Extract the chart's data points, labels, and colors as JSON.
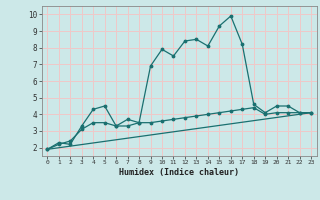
{
  "title": "",
  "xlabel": "Humidex (Indice chaleur)",
  "bg_color": "#cce8e8",
  "grid_color": "#f0c8c8",
  "line_color": "#1a7070",
  "xlim": [
    -0.5,
    23.5
  ],
  "ylim": [
    1.5,
    10.5
  ],
  "xticks": [
    0,
    1,
    2,
    3,
    4,
    5,
    6,
    7,
    8,
    9,
    10,
    11,
    12,
    13,
    14,
    15,
    16,
    17,
    18,
    19,
    20,
    21,
    22,
    23
  ],
  "yticks": [
    2,
    3,
    4,
    5,
    6,
    7,
    8,
    9,
    10
  ],
  "line1_x": [
    0,
    1,
    2,
    3,
    4,
    5,
    6,
    7,
    8,
    9,
    10,
    11,
    12,
    13,
    14,
    15,
    16,
    17,
    18,
    19,
    20,
    21,
    22,
    23
  ],
  "line1_y": [
    1.9,
    2.3,
    2.2,
    3.3,
    4.3,
    4.5,
    3.3,
    3.7,
    3.5,
    6.9,
    7.9,
    7.5,
    8.4,
    8.5,
    8.1,
    9.3,
    9.9,
    8.2,
    4.6,
    4.1,
    4.5,
    4.5,
    4.1,
    4.1
  ],
  "line2_x": [
    0,
    1,
    2,
    3,
    4,
    5,
    6,
    7,
    8,
    9,
    10,
    11,
    12,
    13,
    14,
    15,
    16,
    17,
    18,
    19,
    20,
    21,
    22,
    23
  ],
  "line2_y": [
    1.9,
    2.2,
    2.4,
    3.1,
    3.5,
    3.5,
    3.3,
    3.3,
    3.5,
    3.5,
    3.6,
    3.7,
    3.8,
    3.9,
    4.0,
    4.1,
    4.2,
    4.3,
    4.4,
    4.0,
    4.1,
    4.1,
    4.1,
    4.1
  ],
  "line3_x": [
    0,
    23
  ],
  "line3_y": [
    1.9,
    4.1
  ]
}
